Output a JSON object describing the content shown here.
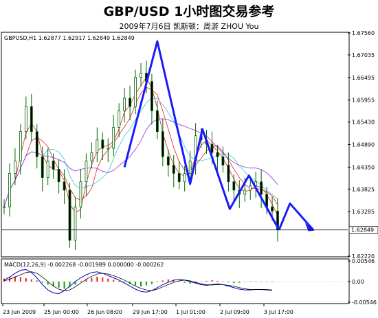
{
  "header": {
    "title": "GBP/USD 1小时图交易参考",
    "subtitle": "2009年7月6日    凯斯顿：周游 ZHOU You"
  },
  "chart_data": [
    {
      "type": "line",
      "name": "price",
      "info_label": "GBPUSD,H1  1.62877 1.62917 1.62849 1.62849",
      "current_price_label": "1.62849",
      "ylim": [
        1.6222,
        1.6756
      ],
      "y_ticks": [
        "1.67560",
        "1.67035",
        "1.66495",
        "1.65955",
        "1.65430",
        "1.64890",
        "1.64350",
        "1.63825",
        "1.63285",
        "1.62220"
      ],
      "x_tick_labels": [
        "23 Jun 2009",
        "25 Jun 00:00",
        "26 Jun 08:00",
        "29 Jun 17:00",
        "1 Jul 01:00",
        "2 Jul 09:00",
        "3 Jul 17:00"
      ],
      "series": [
        {
          "role": "close",
          "x": [
            0,
            8,
            16,
            24,
            32,
            40,
            48,
            56,
            64,
            72,
            80,
            88,
            96,
            104,
            112,
            120,
            128,
            136,
            144,
            152,
            160,
            168,
            176,
            184,
            192,
            200,
            208,
            216,
            224,
            232,
            240,
            248,
            256,
            264,
            272,
            280,
            288,
            296,
            304,
            312,
            320,
            328,
            336,
            344,
            352,
            360,
            368,
            376,
            384,
            392,
            400
          ],
          "values": [
            1.634,
            1.642,
            1.645,
            1.652,
            1.658,
            1.652,
            1.646,
            1.641,
            1.645,
            1.643,
            1.64,
            1.638,
            1.626,
            1.634,
            1.64,
            1.645,
            1.647,
            1.65,
            1.648,
            1.648,
            1.653,
            1.657,
            1.66,
            1.658,
            1.665,
            1.666,
            1.664,
            1.657,
            1.652,
            1.646,
            1.644,
            1.642,
            1.64,
            1.642,
            1.645,
            1.651,
            1.65,
            1.649,
            1.647,
            1.646,
            1.644,
            1.64,
            1.638,
            1.637,
            1.638,
            1.639,
            1.64,
            1.637,
            1.634,
            1.633,
            1.6285
          ]
        }
      ],
      "annotation_path": {
        "x": [
          176,
          224,
          272,
          290,
          330,
          358,
          402
        ],
        "values": [
          1.6435,
          1.6736,
          1.6395,
          1.6526,
          1.6335,
          1.6415,
          1.6285
        ]
      },
      "annotation_arrow": {
        "x": [
          402,
          418,
          452
        ],
        "values": [
          1.6285,
          1.6348,
          1.6285
        ]
      },
      "colors": {
        "candles": "#008000",
        "annotation": "#1a1aff",
        "ma_fast": "#e02020",
        "ma_mid": "#30c8d8",
        "ma_slow": "#9030e0"
      }
    },
    {
      "type": "bar",
      "name": "MACD",
      "info_label": "MACD(12,26,9) -0.002268 -0.001989 0.000000 -0.000262",
      "ylim": [
        -0.00546,
        0.00546
      ],
      "y_ticks": [
        "0.00546",
        "0.00",
        "-0.00546"
      ],
      "histogram": [
        0.0008,
        0.0011,
        0.0014,
        0.0012,
        0.0009,
        0.0006,
        0.0003,
        -0.0003,
        -0.0008,
        -0.0012,
        -0.0016,
        -0.0019,
        -0.0015,
        -0.0008,
        0.0002,
        0.0006,
        0.001,
        0.0013,
        0.0011,
        0.0008,
        0.0005,
        0.0002,
        -0.0002,
        -0.0006,
        -0.001,
        -0.0013,
        -0.001,
        -0.0006,
        -0.0002,
        0.0003,
        0.0006,
        0.0004,
        0.0001,
        -0.0003,
        -0.0006,
        -0.0004,
        -0.0001,
        0.0002,
        0.0004,
        0.0002,
        0.0001,
        -0.0002,
        -0.0004,
        -0.0003,
        -0.0001,
        0.0001,
        0.0,
        0.0,
        -0.0001,
        0.0
      ],
      "macd_line": [
        0.0004,
        0.0012,
        0.0022,
        0.003,
        0.0032,
        0.0024,
        0.001,
        -0.0008,
        -0.0022,
        -0.003,
        -0.0032,
        -0.0024,
        -0.0012,
        0.0,
        0.001,
        0.0018,
        0.0024,
        0.0026,
        0.0022,
        0.0016,
        0.001,
        0.0004,
        -0.0004,
        -0.0012,
        -0.002,
        -0.0026,
        -0.0028,
        -0.0024,
        -0.0016,
        -0.0008,
        -0.0002,
        0.0004,
        0.0006,
        0.0004,
        0.0,
        -0.0004,
        -0.0008,
        -0.001,
        -0.0008,
        -0.0006,
        -0.0008,
        -0.0012,
        -0.0016,
        -0.002,
        -0.0022,
        -0.0022,
        -0.0021,
        -0.0021,
        -0.0022,
        -0.0023
      ],
      "signal_line": [
        0.0002,
        0.0006,
        0.0012,
        0.0018,
        0.0024,
        0.0026,
        0.0022,
        0.0012,
        0.0,
        -0.0012,
        -0.002,
        -0.0024,
        -0.0022,
        -0.0014,
        -0.0004,
        0.0006,
        0.0014,
        0.002,
        0.0022,
        0.002,
        0.0016,
        0.001,
        0.0004,
        -0.0004,
        -0.0012,
        -0.0018,
        -0.0022,
        -0.0024,
        -0.002,
        -0.0014,
        -0.0008,
        -0.0002,
        0.0002,
        0.0004,
        0.0002,
        -0.0002,
        -0.0006,
        -0.0008,
        -0.0009,
        -0.0008,
        -0.0008,
        -0.001,
        -0.0012,
        -0.0016,
        -0.0019,
        -0.0021,
        -0.0021,
        -0.0021,
        -0.0021,
        -0.0022
      ],
      "colors": {
        "positive": "#e02020",
        "negative": "#00a000",
        "macd": "#0000c0",
        "signal": "#000000"
      }
    }
  ]
}
